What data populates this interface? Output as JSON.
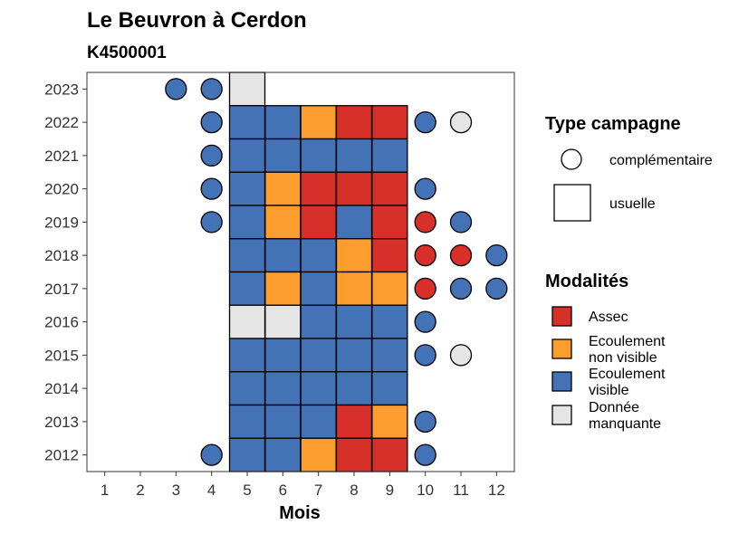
{
  "chart_data": {
    "type": "heatmap",
    "title": "Le Beuvron à Cerdon",
    "subtitle": "K4500001",
    "xlabel": "Mois",
    "ylabel": "",
    "x_ticks": [
      1,
      2,
      3,
      4,
      5,
      6,
      7,
      8,
      9,
      10,
      11,
      12
    ],
    "y_ticks": [
      2012,
      2013,
      2014,
      2015,
      2016,
      2017,
      2018,
      2019,
      2020,
      2021,
      2022,
      2023
    ],
    "grid": false,
    "legend_position": "right",
    "colors": {
      "Assec": "#d7302a",
      "Ecoulement non visible": "#fd9c2f",
      "Ecoulement visible": "#4472b6",
      "Donnée manquante": "#e5e5e5"
    },
    "legend_type": {
      "title": "Type campagne",
      "items": [
        {
          "label": "complémentaire",
          "shape": "circle"
        },
        {
          "label": "usuelle",
          "shape": "square"
        }
      ]
    },
    "legend_modalites": {
      "title": "Modalités",
      "items": [
        {
          "lines": [
            "Assec"
          ],
          "key": "Assec"
        },
        {
          "lines": [
            "Ecoulement",
            "non visible"
          ],
          "key": "Ecoulement non visible"
        },
        {
          "lines": [
            "Ecoulement",
            "visible"
          ],
          "key": "Ecoulement visible"
        },
        {
          "lines": [
            "Donnée",
            "manquante"
          ],
          "key": "Donnée manquante"
        }
      ]
    },
    "observations": [
      {
        "year": 2023,
        "month": 3,
        "campagne": "complémentaire",
        "modalite": "Ecoulement visible"
      },
      {
        "year": 2023,
        "month": 4,
        "campagne": "complémentaire",
        "modalite": "Ecoulement visible"
      },
      {
        "year": 2023,
        "month": 5,
        "campagne": "usuelle",
        "modalite": "Donnée manquante"
      },
      {
        "year": 2022,
        "month": 4,
        "campagne": "complémentaire",
        "modalite": "Ecoulement visible"
      },
      {
        "year": 2022,
        "month": 5,
        "campagne": "usuelle",
        "modalite": "Ecoulement visible"
      },
      {
        "year": 2022,
        "month": 6,
        "campagne": "usuelle",
        "modalite": "Ecoulement visible"
      },
      {
        "year": 2022,
        "month": 7,
        "campagne": "usuelle",
        "modalite": "Ecoulement non visible"
      },
      {
        "year": 2022,
        "month": 8,
        "campagne": "usuelle",
        "modalite": "Assec"
      },
      {
        "year": 2022,
        "month": 9,
        "campagne": "usuelle",
        "modalite": "Assec"
      },
      {
        "year": 2022,
        "month": 10,
        "campagne": "complémentaire",
        "modalite": "Ecoulement visible"
      },
      {
        "year": 2022,
        "month": 11,
        "campagne": "complémentaire",
        "modalite": "Donnée manquante"
      },
      {
        "year": 2021,
        "month": 4,
        "campagne": "complémentaire",
        "modalite": "Ecoulement visible"
      },
      {
        "year": 2021,
        "month": 5,
        "campagne": "usuelle",
        "modalite": "Ecoulement visible"
      },
      {
        "year": 2021,
        "month": 6,
        "campagne": "usuelle",
        "modalite": "Ecoulement visible"
      },
      {
        "year": 2021,
        "month": 7,
        "campagne": "usuelle",
        "modalite": "Ecoulement visible"
      },
      {
        "year": 2021,
        "month": 8,
        "campagne": "usuelle",
        "modalite": "Ecoulement visible"
      },
      {
        "year": 2021,
        "month": 9,
        "campagne": "usuelle",
        "modalite": "Ecoulement visible"
      },
      {
        "year": 2020,
        "month": 4,
        "campagne": "complémentaire",
        "modalite": "Ecoulement visible"
      },
      {
        "year": 2020,
        "month": 5,
        "campagne": "usuelle",
        "modalite": "Ecoulement visible"
      },
      {
        "year": 2020,
        "month": 6,
        "campagne": "usuelle",
        "modalite": "Ecoulement non visible"
      },
      {
        "year": 2020,
        "month": 7,
        "campagne": "usuelle",
        "modalite": "Assec"
      },
      {
        "year": 2020,
        "month": 8,
        "campagne": "usuelle",
        "modalite": "Assec"
      },
      {
        "year": 2020,
        "month": 9,
        "campagne": "usuelle",
        "modalite": "Assec"
      },
      {
        "year": 2020,
        "month": 10,
        "campagne": "complémentaire",
        "modalite": "Ecoulement visible"
      },
      {
        "year": 2019,
        "month": 4,
        "campagne": "complémentaire",
        "modalite": "Ecoulement visible"
      },
      {
        "year": 2019,
        "month": 5,
        "campagne": "usuelle",
        "modalite": "Ecoulement visible"
      },
      {
        "year": 2019,
        "month": 6,
        "campagne": "usuelle",
        "modalite": "Ecoulement non visible"
      },
      {
        "year": 2019,
        "month": 7,
        "campagne": "usuelle",
        "modalite": "Assec"
      },
      {
        "year": 2019,
        "month": 8,
        "campagne": "usuelle",
        "modalite": "Ecoulement visible"
      },
      {
        "year": 2019,
        "month": 9,
        "campagne": "usuelle",
        "modalite": "Assec"
      },
      {
        "year": 2019,
        "month": 10,
        "campagne": "complémentaire",
        "modalite": "Assec"
      },
      {
        "year": 2019,
        "month": 11,
        "campagne": "complémentaire",
        "modalite": "Ecoulement visible"
      },
      {
        "year": 2018,
        "month": 5,
        "campagne": "usuelle",
        "modalite": "Ecoulement visible"
      },
      {
        "year": 2018,
        "month": 6,
        "campagne": "usuelle",
        "modalite": "Ecoulement visible"
      },
      {
        "year": 2018,
        "month": 7,
        "campagne": "usuelle",
        "modalite": "Ecoulement visible"
      },
      {
        "year": 2018,
        "month": 8,
        "campagne": "usuelle",
        "modalite": "Ecoulement non visible"
      },
      {
        "year": 2018,
        "month": 9,
        "campagne": "usuelle",
        "modalite": "Assec"
      },
      {
        "year": 2018,
        "month": 10,
        "campagne": "complémentaire",
        "modalite": "Assec"
      },
      {
        "year": 2018,
        "month": 11,
        "campagne": "complémentaire",
        "modalite": "Assec"
      },
      {
        "year": 2018,
        "month": 12,
        "campagne": "complémentaire",
        "modalite": "Ecoulement visible"
      },
      {
        "year": 2017,
        "month": 5,
        "campagne": "usuelle",
        "modalite": "Ecoulement visible"
      },
      {
        "year": 2017,
        "month": 6,
        "campagne": "usuelle",
        "modalite": "Ecoulement non visible"
      },
      {
        "year": 2017,
        "month": 7,
        "campagne": "usuelle",
        "modalite": "Ecoulement visible"
      },
      {
        "year": 2017,
        "month": 8,
        "campagne": "usuelle",
        "modalite": "Ecoulement non visible"
      },
      {
        "year": 2017,
        "month": 9,
        "campagne": "usuelle",
        "modalite": "Ecoulement non visible"
      },
      {
        "year": 2017,
        "month": 10,
        "campagne": "complémentaire",
        "modalite": "Assec"
      },
      {
        "year": 2017,
        "month": 11,
        "campagne": "complémentaire",
        "modalite": "Ecoulement visible"
      },
      {
        "year": 2017,
        "month": 12,
        "campagne": "complémentaire",
        "modalite": "Ecoulement visible"
      },
      {
        "year": 2016,
        "month": 5,
        "campagne": "usuelle",
        "modalite": "Donnée manquante"
      },
      {
        "year": 2016,
        "month": 6,
        "campagne": "usuelle",
        "modalite": "Donnée manquante"
      },
      {
        "year": 2016,
        "month": 7,
        "campagne": "usuelle",
        "modalite": "Ecoulement visible"
      },
      {
        "year": 2016,
        "month": 8,
        "campagne": "usuelle",
        "modalite": "Ecoulement visible"
      },
      {
        "year": 2016,
        "month": 9,
        "campagne": "usuelle",
        "modalite": "Ecoulement visible"
      },
      {
        "year": 2016,
        "month": 10,
        "campagne": "complémentaire",
        "modalite": "Ecoulement visible"
      },
      {
        "year": 2015,
        "month": 5,
        "campagne": "usuelle",
        "modalite": "Ecoulement visible"
      },
      {
        "year": 2015,
        "month": 6,
        "campagne": "usuelle",
        "modalite": "Ecoulement visible"
      },
      {
        "year": 2015,
        "month": 7,
        "campagne": "usuelle",
        "modalite": "Ecoulement visible"
      },
      {
        "year": 2015,
        "month": 8,
        "campagne": "usuelle",
        "modalite": "Ecoulement visible"
      },
      {
        "year": 2015,
        "month": 9,
        "campagne": "usuelle",
        "modalite": "Ecoulement visible"
      },
      {
        "year": 2015,
        "month": 10,
        "campagne": "complémentaire",
        "modalite": "Ecoulement visible"
      },
      {
        "year": 2015,
        "month": 11,
        "campagne": "complémentaire",
        "modalite": "Donnée manquante"
      },
      {
        "year": 2014,
        "month": 5,
        "campagne": "usuelle",
        "modalite": "Ecoulement visible"
      },
      {
        "year": 2014,
        "month": 6,
        "campagne": "usuelle",
        "modalite": "Ecoulement visible"
      },
      {
        "year": 2014,
        "month": 7,
        "campagne": "usuelle",
        "modalite": "Ecoulement visible"
      },
      {
        "year": 2014,
        "month": 8,
        "campagne": "usuelle",
        "modalite": "Ecoulement visible"
      },
      {
        "year": 2014,
        "month": 9,
        "campagne": "usuelle",
        "modalite": "Ecoulement visible"
      },
      {
        "year": 2013,
        "month": 5,
        "campagne": "usuelle",
        "modalite": "Ecoulement visible"
      },
      {
        "year": 2013,
        "month": 6,
        "campagne": "usuelle",
        "modalite": "Ecoulement visible"
      },
      {
        "year": 2013,
        "month": 7,
        "campagne": "usuelle",
        "modalite": "Ecoulement visible"
      },
      {
        "year": 2013,
        "month": 8,
        "campagne": "usuelle",
        "modalite": "Assec"
      },
      {
        "year": 2013,
        "month": 9,
        "campagne": "usuelle",
        "modalite": "Ecoulement non visible"
      },
      {
        "year": 2013,
        "month": 10,
        "campagne": "complémentaire",
        "modalite": "Ecoulement visible"
      },
      {
        "year": 2012,
        "month": 4,
        "campagne": "complémentaire",
        "modalite": "Ecoulement visible"
      },
      {
        "year": 2012,
        "month": 5,
        "campagne": "usuelle",
        "modalite": "Ecoulement visible"
      },
      {
        "year": 2012,
        "month": 6,
        "campagne": "usuelle",
        "modalite": "Ecoulement visible"
      },
      {
        "year": 2012,
        "month": 7,
        "campagne": "usuelle",
        "modalite": "Ecoulement non visible"
      },
      {
        "year": 2012,
        "month": 8,
        "campagne": "usuelle",
        "modalite": "Assec"
      },
      {
        "year": 2012,
        "month": 9,
        "campagne": "usuelle",
        "modalite": "Assec"
      },
      {
        "year": 2012,
        "month": 10,
        "campagne": "complémentaire",
        "modalite": "Ecoulement visible"
      }
    ]
  }
}
